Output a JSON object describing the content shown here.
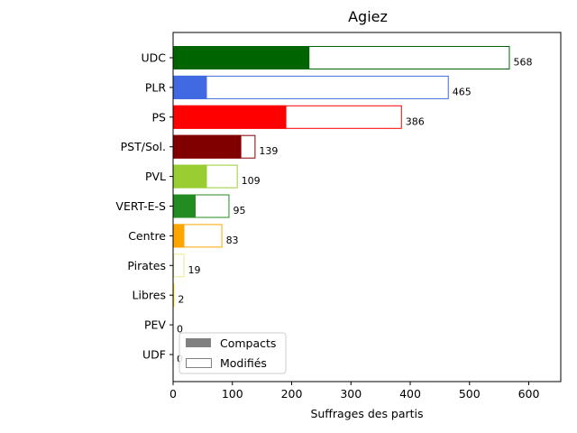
{
  "chart_data": {
    "type": "bar",
    "orientation": "horizontal",
    "title": "Agiez",
    "xlabel": "Suffrages des partis",
    "ylabel": "",
    "xlim": [
      0,
      654
    ],
    "xticks": [
      0,
      100,
      200,
      300,
      400,
      500,
      600
    ],
    "categories": [
      "UDC",
      "PLR",
      "PS",
      "PST/Sol.",
      "PVL",
      "VERT-E-S",
      "Centre",
      "Pirates",
      "Libres",
      "PEV",
      "UDF"
    ],
    "colors": [
      "#006400",
      "#4169e1",
      "#ff0000",
      "#800000",
      "#9acd32",
      "#228b22",
      "#ffa500",
      "#f0e68c",
      "#ffd700",
      "#ffff00",
      "#dda0dd"
    ],
    "series": [
      {
        "name": "Compacts",
        "values": [
          230,
          57,
          191,
          115,
          57,
          38,
          19,
          0,
          0,
          0,
          0
        ]
      },
      {
        "name": "Modifiés",
        "values": [
          568,
          465,
          386,
          139,
          109,
          95,
          83,
          19,
          2,
          0,
          0
        ]
      }
    ],
    "data_labels": [
      "568",
      "465",
      "386",
      "139",
      "109",
      "95",
      "83",
      "19",
      "2",
      "0",
      "0"
    ],
    "legend": {
      "position": "lower-left",
      "entries": [
        {
          "label": "Compacts",
          "style": "filled",
          "color": "#808080"
        },
        {
          "label": "Modifiés",
          "style": "outline",
          "color": "#808080"
        }
      ]
    },
    "grid": false
  }
}
